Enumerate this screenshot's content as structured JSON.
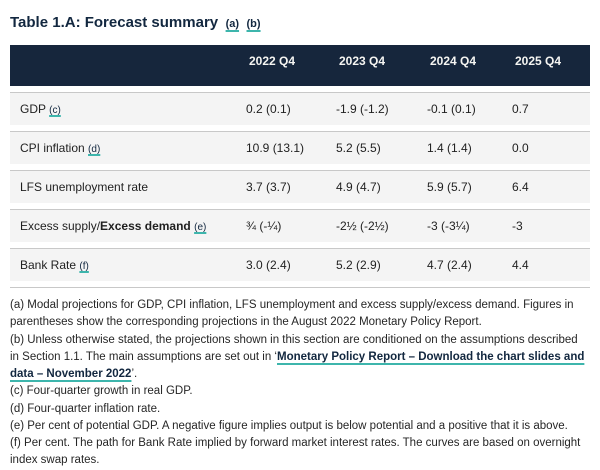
{
  "colors": {
    "header_bg": "#16263c",
    "title_navy": "#12273f",
    "row_bg": "#f4f4f4",
    "teal_underline": "#3db5ac"
  },
  "title": {
    "text": "Table 1.A: Forecast summary",
    "note_a": "(a)",
    "note_b": "(b)"
  },
  "table": {
    "columns": [
      "2022 Q4",
      "2023 Q4",
      "2024 Q4",
      "2025 Q4"
    ],
    "rows": [
      {
        "label": "GDP",
        "label_bold": "",
        "note": "(c)",
        "values": [
          "0.2 (0.1)",
          "-1.9 (-1.2)",
          "-0.1 (0.1)",
          "0.7"
        ]
      },
      {
        "label": "CPI inflation",
        "label_bold": "",
        "note": "(d)",
        "values": [
          "10.9 (13.1)",
          "5.2 (5.5)",
          "1.4 (1.4)",
          "0.0"
        ]
      },
      {
        "label": "LFS unemployment rate",
        "label_bold": "",
        "note": "",
        "values": [
          "3.7 (3.7)",
          "4.9 (4.7)",
          "5.9 (5.7)",
          "6.4"
        ]
      },
      {
        "label": "Excess supply/",
        "label_bold": "Excess demand",
        "note": "(e)",
        "values": [
          "¾ (-¼)",
          "-2½ (-2½)",
          "-3 (-3¼)",
          "-3"
        ]
      },
      {
        "label": "Bank Rate",
        "label_bold": "",
        "note": "(f)",
        "values": [
          "3.0 (2.4)",
          "5.2 (2.9)",
          "4.7 (2.4)",
          "4.4"
        ]
      }
    ]
  },
  "footnotes": {
    "a": "(a) Modal projections for GDP, CPI inflation, LFS unemployment and excess supply/excess demand. Figures in parentheses show the corresponding projections in the August 2022 Monetary Policy Report.",
    "b_prefix": "(b) Unless otherwise stated, the projections shown in this section are conditioned on the assumptions described in Section 1.1. The main assumptions are set out in ‘",
    "b_link": "Monetary Policy Report – Download the chart slides and data – November 2022",
    "b_suffix": "’.",
    "c": "(c) Four-quarter growth in real GDP.",
    "d": "(d) Four-quarter inflation rate.",
    "e": "(e) Per cent of potential GDP. A negative figure implies output is below potential and a positive that it is above.",
    "f": "(f) Per cent. The path for Bank Rate implied by forward market interest rates. The curves are based on overnight index swap rates."
  }
}
